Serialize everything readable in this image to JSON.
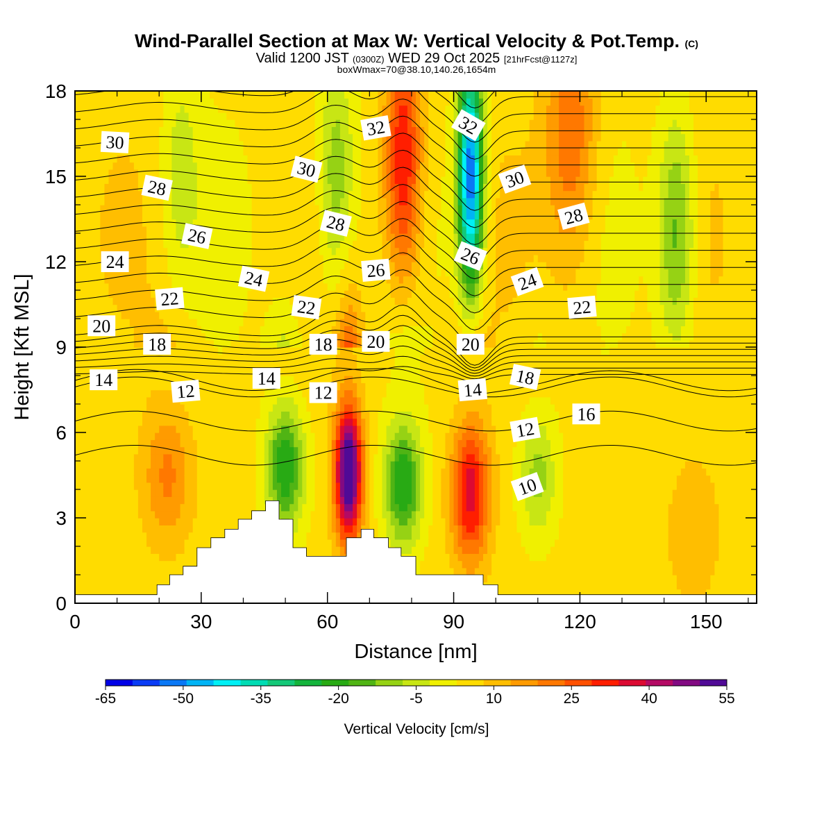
{
  "title": {
    "main": "Wind-Parallel Section at Max W: Vertical Velocity & Pot.Temp.",
    "copyright": "(C)",
    "valid_prefix": "Valid 1200 JST",
    "valid_utc": "(0300Z)",
    "valid_date": "WED 29 Oct 2025",
    "forecast": "[21hrFcst@1127z]",
    "boxline": "boxWmax=70@38.10,140.26,1654m"
  },
  "colors": {
    "scale": [
      "#0000e6",
      "#0a3cf5",
      "#0a78f5",
      "#00b4f5",
      "#00f0f5",
      "#00dcb4",
      "#14c878",
      "#14b43c",
      "#28aa14",
      "#50b414",
      "#96d214",
      "#c8e614",
      "#f0f000",
      "#ffdc00",
      "#ffbe00",
      "#ff9b00",
      "#ff7800",
      "#ff5000",
      "#ff1e00",
      "#dc0a32",
      "#b40a64",
      "#820a82",
      "#500a96"
    ],
    "terrain": "#ffffff",
    "contour": "#000000"
  },
  "chart_data": {
    "type": "heatmap",
    "title": "Wind-Parallel Section at Max W: Vertical Velocity & Pot.Temp.",
    "xlabel": "Distance [nm]",
    "ylabel": "Height [Kft MSL]",
    "xlim": [
      0,
      162
    ],
    "ylim": [
      0,
      18
    ],
    "xticks": [
      "0",
      "30",
      "60",
      "90",
      "120",
      "150"
    ],
    "yticks": [
      "0",
      "3",
      "6",
      "9",
      "12",
      "15",
      "18"
    ],
    "colorbar": {
      "label": "Vertical Velocity [cm/s]",
      "min": -65,
      "max": 55,
      "step": 5,
      "ticks": [
        "-65",
        "-50",
        "-35",
        "-20",
        "-5",
        "10",
        "25",
        "40",
        "55"
      ]
    },
    "updrafts": [
      {
        "x": 65,
        "z": 4.6,
        "w": 55
      },
      {
        "x": 94,
        "z": 3.9,
        "w": 33
      },
      {
        "x": 78,
        "z": 15.5,
        "w": 32
      },
      {
        "x": 118,
        "z": 16.5,
        "w": 20
      },
      {
        "x": 22,
        "z": 4.5,
        "w": 16
      },
      {
        "x": 147,
        "z": 2.5,
        "w": 10
      }
    ],
    "downdrafts": [
      {
        "x": 94,
        "z": 15.0,
        "w": -55
      },
      {
        "x": 50,
        "z": 4.8,
        "w": -25
      },
      {
        "x": 78,
        "z": 4.2,
        "w": -25
      },
      {
        "x": 62,
        "z": 15.0,
        "w": -15
      },
      {
        "x": 110,
        "z": 4.5,
        "w": -12
      },
      {
        "x": 143,
        "z": 13.0,
        "w": -18
      },
      {
        "x": 25,
        "z": 15.0,
        "w": -7
      }
    ],
    "terrain": {
      "x": [
        0,
        19.5,
        19.5,
        22.5,
        22.5,
        25.7,
        25.7,
        29,
        29,
        32.3,
        32.3,
        35.6,
        35.6,
        38.8,
        38.8,
        42,
        42,
        45.3,
        45.3,
        48.5,
        48.5,
        51.8,
        51.8,
        55,
        55,
        58,
        58,
        61.5,
        61.5,
        64.5,
        64.5,
        68,
        68,
        71,
        71,
        74.5,
        74.5,
        77.5,
        77.5,
        81,
        81,
        84,
        84,
        87,
        87,
        90,
        90,
        93.5,
        93.5,
        97,
        97,
        100.5,
        100.5,
        162
      ],
      "z": [
        0.3,
        0.3,
        0.65,
        0.65,
        1.0,
        1.0,
        1.3,
        1.3,
        1.95,
        1.95,
        2.3,
        2.3,
        2.6,
        2.6,
        2.95,
        2.95,
        3.25,
        3.25,
        3.6,
        3.6,
        2.95,
        2.95,
        1.95,
        1.95,
        1.65,
        1.65,
        1.65,
        1.65,
        1.65,
        1.65,
        2.3,
        2.3,
        2.6,
        2.6,
        2.3,
        2.3,
        1.95,
        1.95,
        1.65,
        1.65,
        1.0,
        1.0,
        1.0,
        1.0,
        1.0,
        1.0,
        1.0,
        1.0,
        1.0,
        1.0,
        0.65,
        0.65,
        0.3,
        0.3
      ]
    },
    "theta_contours": {
      "first": 10,
      "last": 35,
      "interval": 1,
      "labels": [
        {
          "text": "30",
          "x": 9.5,
          "z": 16.2,
          "rot": 3
        },
        {
          "text": "28",
          "x": 19.5,
          "z": 14.6,
          "rot": 12
        },
        {
          "text": "26",
          "x": 29,
          "z": 12.9,
          "rot": 12
        },
        {
          "text": "24",
          "x": 9.5,
          "z": 12.0,
          "rot": 0
        },
        {
          "text": "22",
          "x": 22.5,
          "z": 10.7,
          "rot": -5
        },
        {
          "text": "20",
          "x": 6.3,
          "z": 9.75,
          "rot": 0
        },
        {
          "text": "18",
          "x": 19.5,
          "z": 9.1,
          "rot": 0
        },
        {
          "text": "14",
          "x": 6.8,
          "z": 7.85,
          "rot": 0
        },
        {
          "text": "12",
          "x": 26.3,
          "z": 7.45,
          "rot": -5
        },
        {
          "text": "24",
          "x": 42.5,
          "z": 11.4,
          "rot": 12
        },
        {
          "text": "30",
          "x": 55,
          "z": 15.25,
          "rot": 14
        },
        {
          "text": "28",
          "x": 62,
          "z": 13.35,
          "rot": 14
        },
        {
          "text": "22",
          "x": 55,
          "z": 10.4,
          "rot": 8
        },
        {
          "text": "18",
          "x": 59,
          "z": 9.1,
          "rot": 0
        },
        {
          "text": "14",
          "x": 45.5,
          "z": 7.9,
          "rot": 0
        },
        {
          "text": "12",
          "x": 59,
          "z": 7.4,
          "rot": 0
        },
        {
          "text": "32",
          "x": 71.5,
          "z": 16.7,
          "rot": -10
        },
        {
          "text": "26",
          "x": 71.5,
          "z": 11.7,
          "rot": -5
        },
        {
          "text": "20",
          "x": 71.5,
          "z": 9.2,
          "rot": 0
        },
        {
          "text": "32",
          "x": 93.5,
          "z": 16.8,
          "rot": 30
        },
        {
          "text": "26",
          "x": 94,
          "z": 12.2,
          "rot": 22
        },
        {
          "text": "20",
          "x": 94,
          "z": 9.1,
          "rot": 0
        },
        {
          "text": "14",
          "x": 94.5,
          "z": 7.5,
          "rot": -5
        },
        {
          "text": "30",
          "x": 104.5,
          "z": 14.9,
          "rot": -20
        },
        {
          "text": "24",
          "x": 107.5,
          "z": 11.3,
          "rot": -20
        },
        {
          "text": "18",
          "x": 107,
          "z": 7.95,
          "rot": 12
        },
        {
          "text": "12",
          "x": 107,
          "z": 6.1,
          "rot": -10
        },
        {
          "text": "10",
          "x": 107.5,
          "z": 4.1,
          "rot": -20
        },
        {
          "text": "28",
          "x": 118.5,
          "z": 13.6,
          "rot": -15
        },
        {
          "text": "22",
          "x": 120.5,
          "z": 10.4,
          "rot": -5
        },
        {
          "text": "16",
          "x": 121.5,
          "z": 6.65,
          "rot": 0
        }
      ]
    }
  }
}
